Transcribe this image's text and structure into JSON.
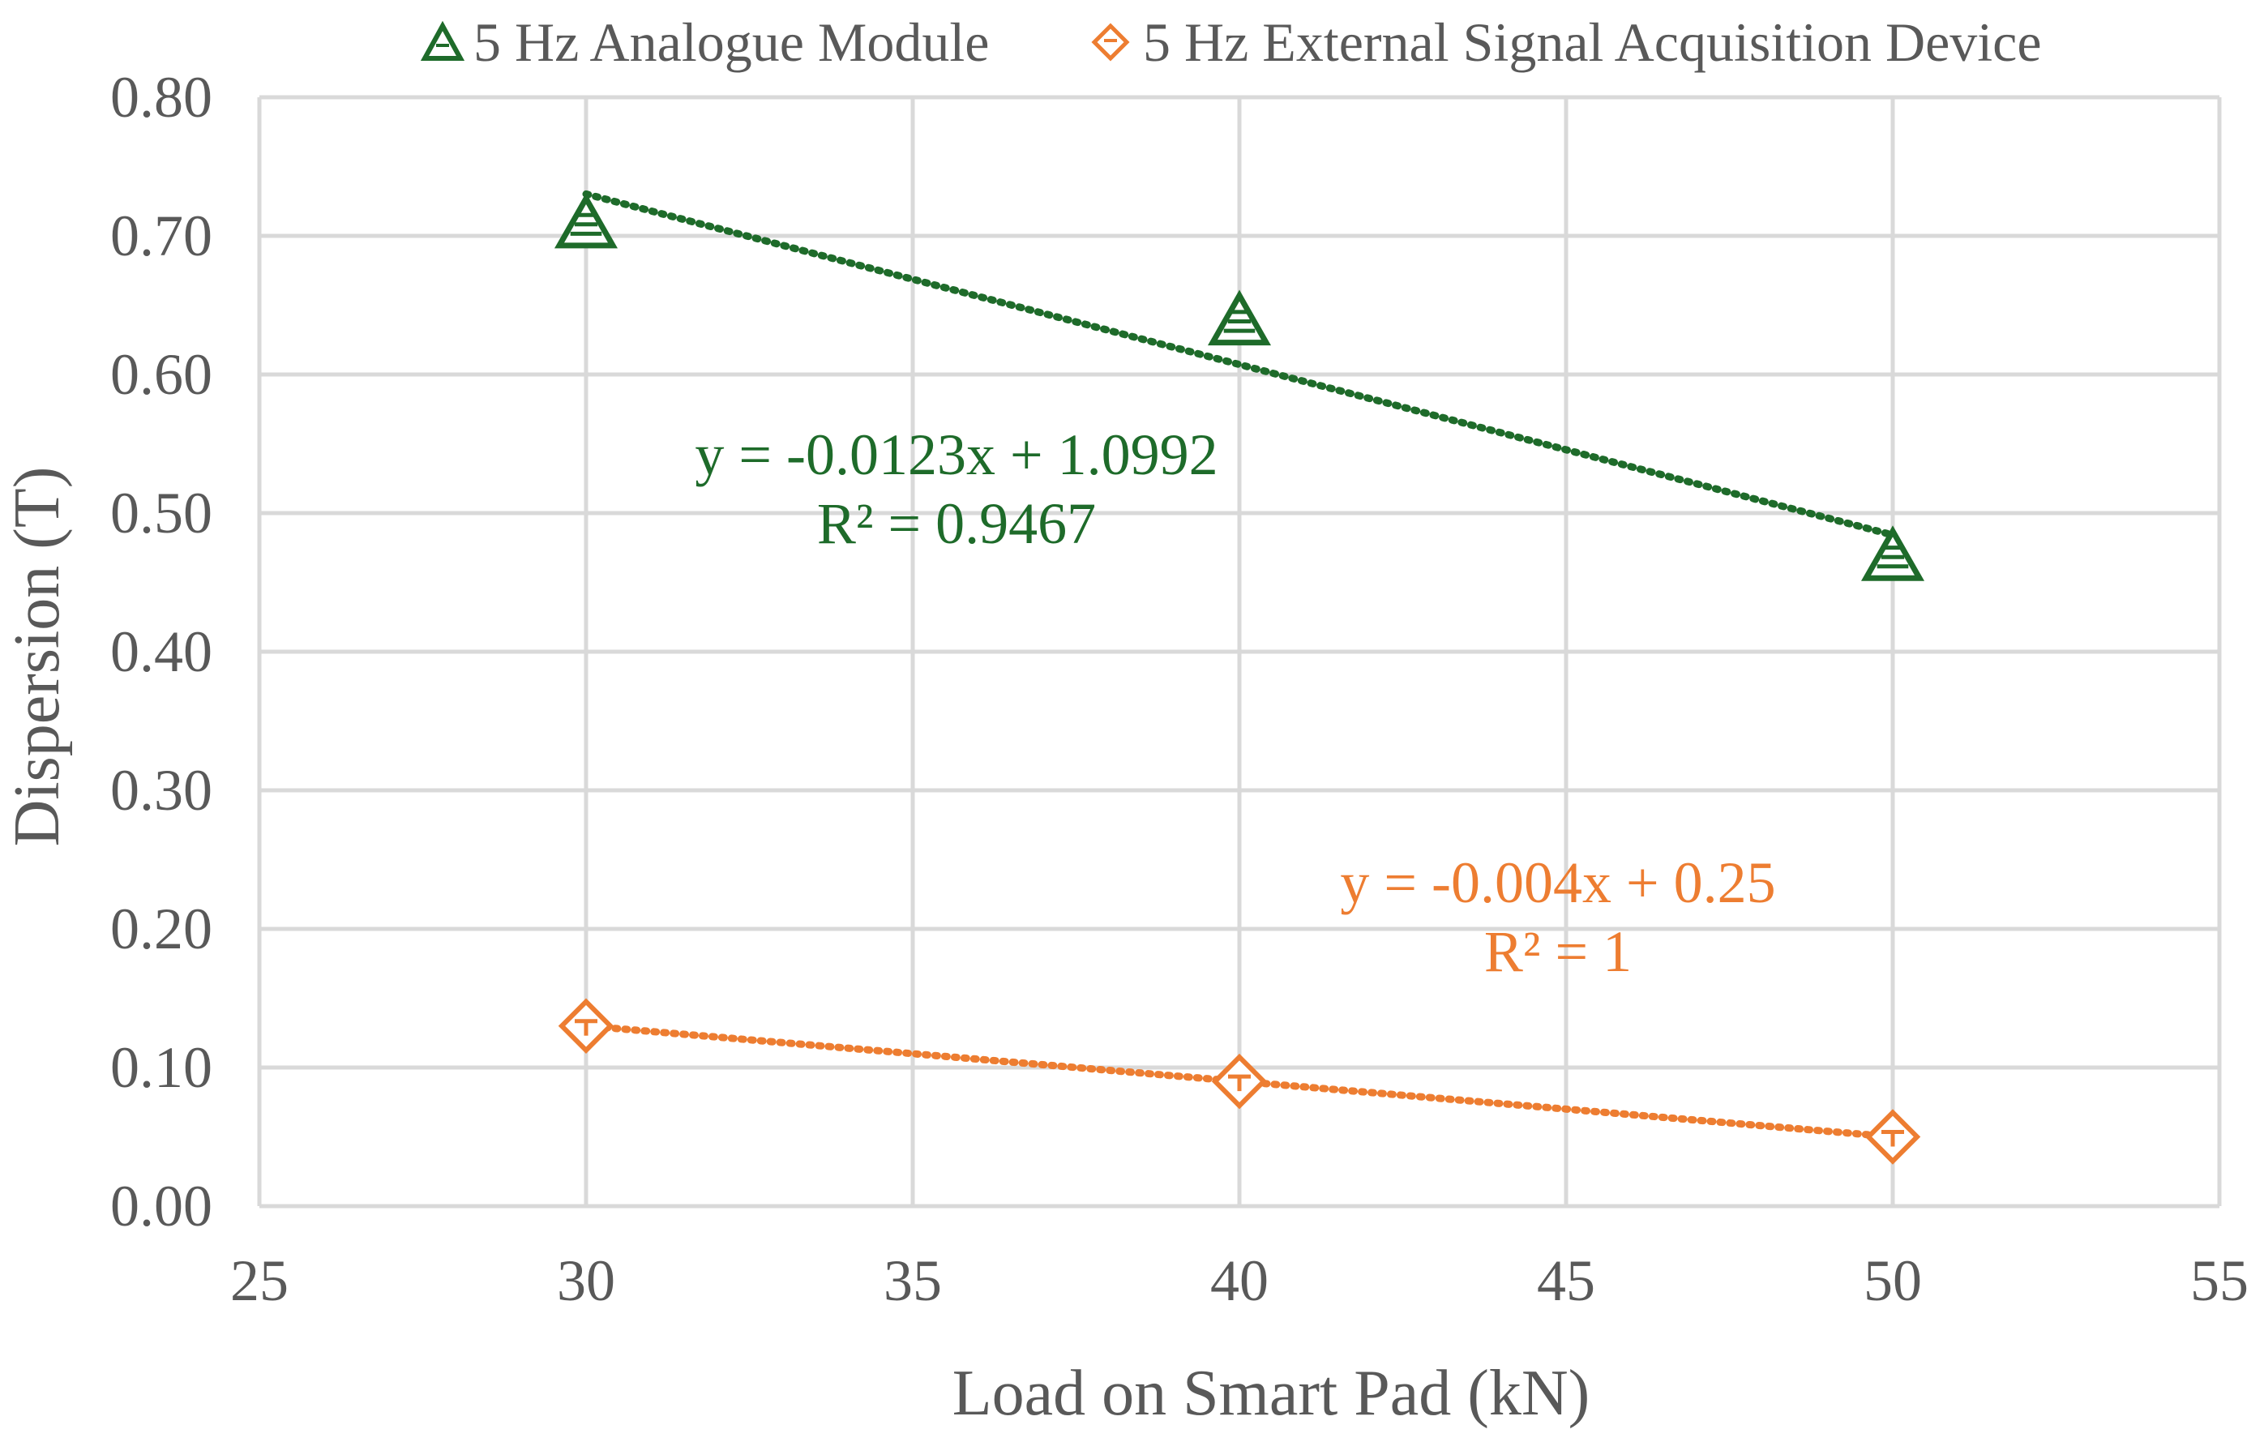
{
  "chart_data": {
    "type": "scatter",
    "title": "",
    "xlabel": "Load on Smart Pad (kN)",
    "ylabel": "Dispersion (T)",
    "xlim": [
      25,
      55
    ],
    "ylim": [
      0,
      0.8
    ],
    "x_ticks": [
      25,
      30,
      35,
      40,
      45,
      50,
      55
    ],
    "y_ticks": [
      0.0,
      0.1,
      0.2,
      0.3,
      0.4,
      0.5,
      0.6,
      0.7,
      0.8
    ],
    "x_tick_labels": [
      "25",
      "30",
      "35",
      "40",
      "45",
      "50",
      "55"
    ],
    "y_tick_labels": [
      "0.00",
      "0.10",
      "0.20",
      "0.30",
      "0.40",
      "0.50",
      "0.60",
      "0.70",
      "0.80"
    ],
    "grid": true,
    "legend_position": "top",
    "series": [
      {
        "name": "5 Hz Analogue Module",
        "marker": "triangle",
        "color": "#1e6b2a",
        "x": [
          30,
          40,
          50
        ],
        "y": [
          0.71,
          0.64,
          0.47
        ],
        "trendline": {
          "type": "linear",
          "slope": -0.0123,
          "intercept": 1.0992,
          "x_range": [
            30,
            50
          ],
          "equation": "y = -0.0123x + 1.0992",
          "r_squared": "R² = 0.9467"
        }
      },
      {
        "name": "5 Hz External Signal Acquisition Device",
        "marker": "diamond",
        "color": "#ed7d31",
        "x": [
          30,
          40,
          50
        ],
        "y": [
          0.13,
          0.09,
          0.05
        ],
        "trendline": {
          "type": "linear",
          "slope": -0.004,
          "intercept": 0.25,
          "x_range": [
            30,
            50
          ],
          "equation": "y = -0.004x + 0.25",
          "r_squared": "R² = 1"
        }
      }
    ]
  }
}
